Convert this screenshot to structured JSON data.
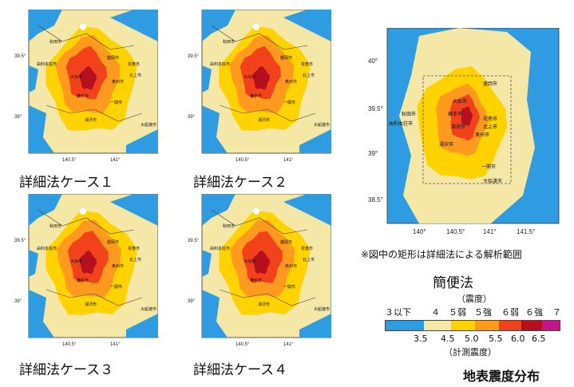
{
  "small_maps": [
    {
      "caption": "詳細法ケース１"
    },
    {
      "caption": "詳細法ケース２"
    },
    {
      "caption": "詳細法ケース３"
    },
    {
      "caption": "詳細法ケース４"
    }
  ],
  "small_map_axes": {
    "y_ticks": [
      "39.5°",
      "39°"
    ],
    "x_ticks": [
      "140.5°",
      "141°"
    ]
  },
  "small_map_cities": [
    "秋田市",
    "由利本荘市",
    "盛岡市",
    "花巻市",
    "北上市",
    "奥州市",
    "一関市",
    "横手市",
    "湯沢市",
    "大仙市",
    "大船渡市"
  ],
  "big_map": {
    "y_ticks": [
      "40°",
      "39.5°",
      "39°",
      "38.5°"
    ],
    "x_ticks": [
      "140°",
      "140.5°",
      "141°",
      "141.5°"
    ],
    "cities": [
      "秋田市",
      "由利本荘市",
      "大仙市",
      "横手市",
      "湯沢市",
      "盛岡市",
      "花巻市",
      "北上市",
      "奥州市",
      "一関市",
      "大船渡市",
      "湯沢市"
    ]
  },
  "note": "※図中の矩形は詳細法による解析範囲",
  "method_label": "簡便法",
  "legend": {
    "title": "（震度）",
    "intensity_labels": [
      "３以下",
      "４",
      "５弱",
      "５強",
      "６弱",
      "６強",
      "７"
    ],
    "values": [
      "3.5",
      "4.5",
      "5.0",
      "5.5",
      "6.0",
      "6.5"
    ],
    "unit": "（計測震度）",
    "colors": [
      "#2f9be0",
      "#f5e7a6",
      "#ffd200",
      "#ff9a1e",
      "#f2421b",
      "#b4101e",
      "#c0168a"
    ]
  },
  "main_title": "地表震度分布"
}
